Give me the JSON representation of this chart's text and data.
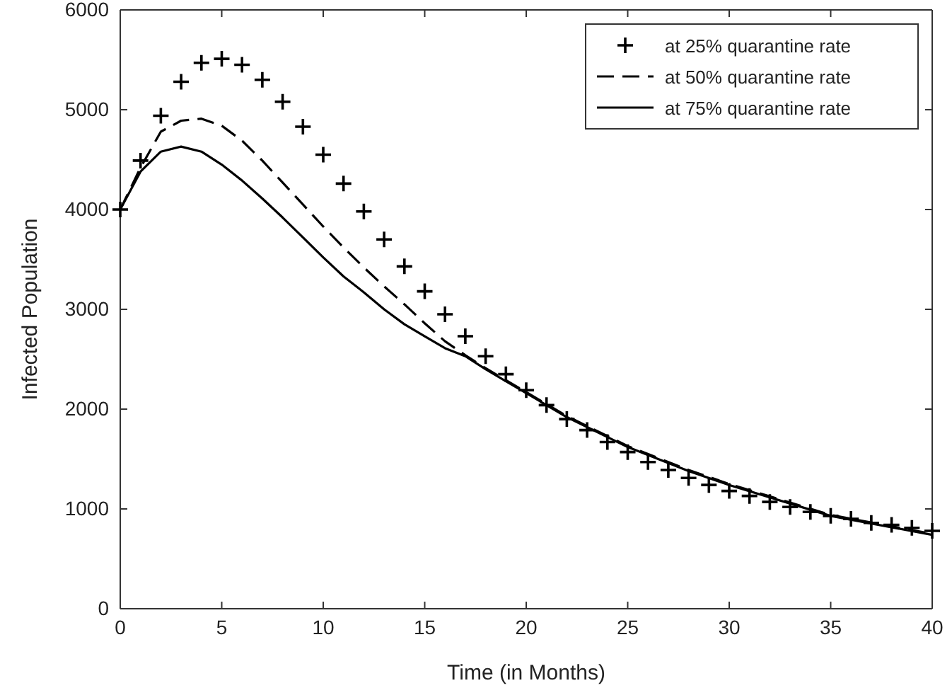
{
  "chart_data": {
    "type": "line",
    "xlabel": "Time (in Months)",
    "ylabel": "Infected Population",
    "xlim": [
      0,
      40
    ],
    "ylim": [
      0,
      6000
    ],
    "xticks": [
      0,
      5,
      10,
      15,
      20,
      25,
      30,
      35,
      40
    ],
    "yticks": [
      0,
      1000,
      2000,
      3000,
      4000,
      5000,
      6000
    ],
    "grid": false,
    "legend": "top right",
    "series": [
      {
        "name": "at 25% quarantine rate",
        "type": "scatter",
        "marker": "cross",
        "color": "#000000",
        "x": [
          0,
          1,
          2,
          3,
          4,
          5,
          6,
          7,
          8,
          9,
          10,
          11,
          12,
          13,
          14,
          15,
          16,
          17,
          18,
          19,
          20,
          21,
          22,
          23,
          24,
          25,
          26,
          27,
          28,
          29,
          30,
          31,
          32,
          33,
          34,
          35,
          36,
          37,
          38,
          39,
          40
        ],
        "values": [
          4000,
          4490,
          4940,
          5280,
          5470,
          5510,
          5450,
          5300,
          5080,
          4830,
          4550,
          4260,
          3980,
          3700,
          3430,
          3180,
          2950,
          2730,
          2530,
          2350,
          2190,
          2040,
          1900,
          1790,
          1670,
          1570,
          1470,
          1390,
          1310,
          1240,
          1180,
          1130,
          1070,
          1020,
          970,
          930,
          900,
          860,
          840,
          810,
          780
        ]
      },
      {
        "name": "at 50% quarantine rate",
        "line_style": "dashed",
        "color": "#000000",
        "x": [
          0,
          1,
          2,
          3,
          4,
          5,
          6,
          7,
          8,
          9,
          10,
          11,
          12,
          13,
          14,
          15,
          16,
          17,
          18,
          19,
          20,
          22,
          25,
          28,
          30,
          35,
          40
        ],
        "values": [
          4000,
          4420,
          4780,
          4890,
          4910,
          4840,
          4690,
          4490,
          4270,
          4050,
          3830,
          3620,
          3420,
          3230,
          3050,
          2860,
          2680,
          2540,
          2410,
          2290,
          2170,
          1930,
          1630,
          1390,
          1250,
          940,
          750
        ]
      },
      {
        "name": "at 75% quarantine rate",
        "line_style": "solid",
        "color": "#000000",
        "x": [
          0,
          1,
          2,
          3,
          4,
          5,
          6,
          7,
          8,
          9,
          10,
          11,
          12,
          13,
          14,
          15,
          16,
          17,
          18,
          19,
          20,
          22,
          25,
          28,
          30,
          35,
          40
        ],
        "values": [
          4000,
          4380,
          4580,
          4630,
          4580,
          4450,
          4290,
          4110,
          3920,
          3720,
          3520,
          3330,
          3170,
          3000,
          2850,
          2730,
          2610,
          2530,
          2400,
          2280,
          2160,
          1920,
          1620,
          1380,
          1240,
          930,
          740
        ]
      }
    ]
  }
}
